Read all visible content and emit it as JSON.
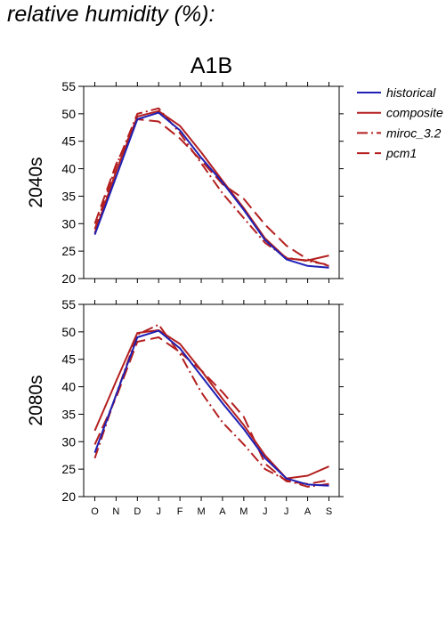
{
  "page_title": "relative humidity (%):",
  "colors": {
    "historical": "#1f1fb4",
    "scenario": "#b41f1f",
    "axis": "#000000"
  },
  "chart_data": [
    {
      "type": "line",
      "title": "A1B",
      "ylabel": "2040s",
      "xlabel": "",
      "categories": [
        "O",
        "N",
        "D",
        "J",
        "F",
        "M",
        "A",
        "M",
        "J",
        "J",
        "A",
        "S"
      ],
      "yticks": [
        20,
        25,
        30,
        35,
        40,
        45,
        50,
        55
      ],
      "ylim": [
        20,
        55
      ],
      "grid": false,
      "legend_position": "right, outside plot",
      "series": [
        {
          "name": "historical",
          "style": "solid",
          "color": "#1f1fb4",
          "values": [
            28.0,
            38.5,
            49.0,
            50.2,
            47.0,
            42.0,
            37.5,
            32.5,
            27.0,
            23.5,
            22.3,
            22.0
          ]
        },
        {
          "name": "composite",
          "style": "solid",
          "color": "#b41f1f",
          "values": [
            28.3,
            39.5,
            49.5,
            50.5,
            47.8,
            43.0,
            37.8,
            32.8,
            27.3,
            23.7,
            23.3,
            24.2
          ]
        },
        {
          "name": "miroc_3.2",
          "style": "dashdot",
          "color": "#b41f1f",
          "values": [
            29.0,
            40.5,
            50.0,
            51.0,
            46.5,
            41.0,
            35.5,
            31.0,
            26.5,
            23.8,
            23.2,
            22.5
          ]
        },
        {
          "name": "pcm1",
          "style": "dashed",
          "color": "#b41f1f",
          "values": [
            30.0,
            40.8,
            49.0,
            48.6,
            45.5,
            41.5,
            37.2,
            34.5,
            29.8,
            26.0,
            23.5,
            22.3
          ]
        }
      ]
    },
    {
      "type": "line",
      "title": "",
      "ylabel": "2080s",
      "xlabel": "",
      "categories": [
        "O",
        "N",
        "D",
        "J",
        "F",
        "M",
        "A",
        "M",
        "J",
        "J",
        "A",
        "S"
      ],
      "yticks": [
        20,
        25,
        30,
        35,
        40,
        45,
        50,
        55
      ],
      "ylim": [
        20,
        55
      ],
      "grid": false,
      "series": [
        {
          "name": "historical",
          "style": "solid",
          "color": "#1f1fb4",
          "values": [
            28.0,
            38.5,
            49.0,
            50.2,
            47.0,
            42.0,
            37.0,
            32.3,
            27.0,
            23.3,
            22.2,
            22.0
          ]
        },
        {
          "name": "composite",
          "style": "solid",
          "color": "#b41f1f",
          "values": [
            32.0,
            41.0,
            49.8,
            50.3,
            47.8,
            43.0,
            37.8,
            33.0,
            27.5,
            23.3,
            23.8,
            25.5
          ]
        },
        {
          "name": "miroc_3.2",
          "style": "dashdot",
          "color": "#b41f1f",
          "values": [
            27.0,
            38.5,
            49.5,
            51.3,
            46.0,
            39.0,
            33.5,
            29.5,
            25.0,
            23.0,
            21.8,
            22.3
          ]
        },
        {
          "name": "pcm1",
          "style": "dashed",
          "color": "#b41f1f",
          "values": [
            29.5,
            38.0,
            48.2,
            49.0,
            46.3,
            43.0,
            39.0,
            34.5,
            26.0,
            22.8,
            22.3,
            23.0
          ]
        }
      ]
    }
  ]
}
